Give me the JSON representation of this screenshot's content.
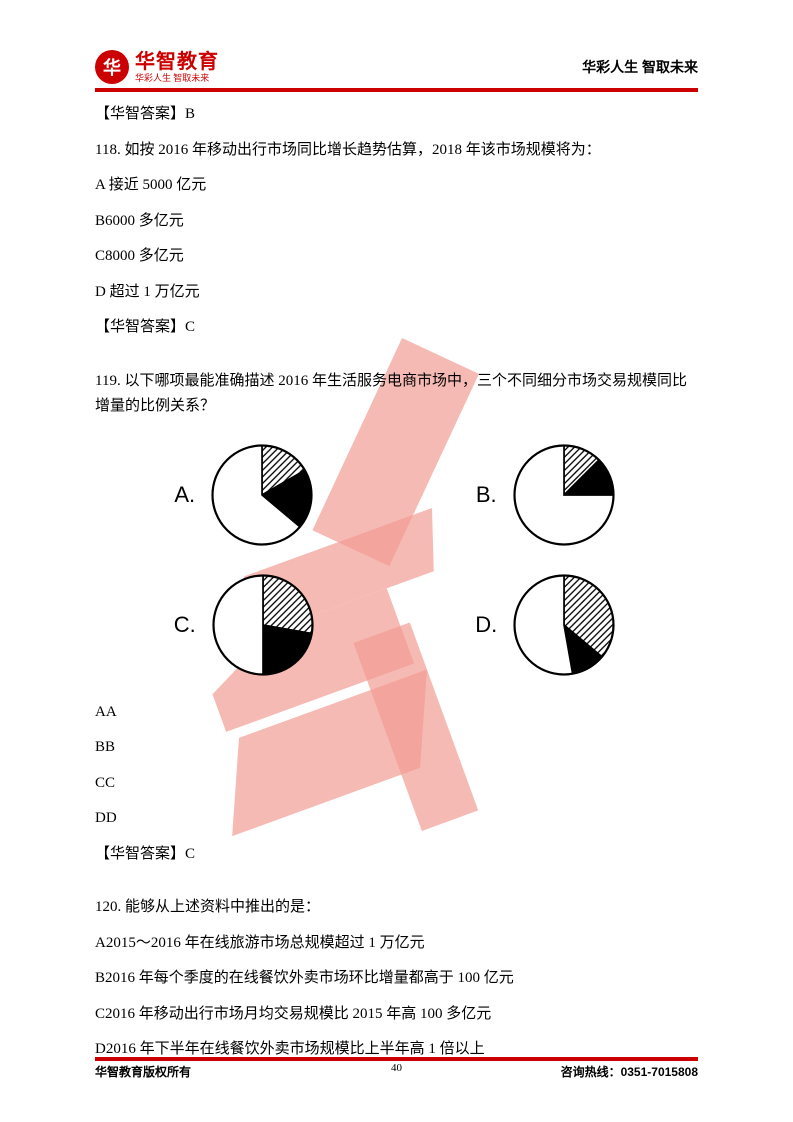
{
  "header": {
    "logo_char": "华",
    "logo_main": "华智教育",
    "logo_sub": "华彩人生 智取未来",
    "right_text": "华彩人生 智取未来"
  },
  "colors": {
    "brand": "#cc0000",
    "text": "#000000",
    "pie_stroke": "#000000",
    "pie_black": "#000000",
    "pie_white": "#ffffff",
    "watermark": "#e74c3c"
  },
  "body": {
    "ans117": "【华智答案】B",
    "q118": "118. 如按 2016 年移动出行市场同比增长趋势估算，2018 年该市场规模将为：",
    "q118a": "A 接近 5000 亿元",
    "q118b": "B6000 多亿元",
    "q118c": "C8000 多亿元",
    "q118d": "D 超过 1 万亿元",
    "ans118": "【华智答案】C",
    "q119": "119. 以下哪项最能准确描述 2016 年生活服务电商市场中，三个不同细分市场交易规模同比增量的比例关系？",
    "pie_labels": {
      "a": "A.",
      "b": "B.",
      "c": "C.",
      "d": "D."
    },
    "pies": {
      "a": {
        "hatched": 60,
        "black": 70,
        "white": 230
      },
      "b": {
        "hatched": 45,
        "black": 45,
        "white": 270
      },
      "c": {
        "hatched": 100,
        "black": 80,
        "white": 180
      },
      "d": {
        "hatched": 130,
        "black": 40,
        "white": 190
      }
    },
    "q119aa": "AA",
    "q119bb": "BB",
    "q119cc": "CC",
    "q119dd": "DD",
    "ans119": "【华智答案】C",
    "q120": "120. 能够从上述资料中推出的是：",
    "q120a": "A2015～2016 年在线旅游市场总规模超过 1 万亿元",
    "q120b": "B2016 年每个季度的在线餐饮外卖市场环比增量都高于 100 亿元",
    "q120c": "C2016 年移动出行市场月均交易规模比 2015 年高 100 多亿元",
    "q120d": "D2016 年下半年在线餐饮外卖市场规模比上半年高 1 倍以上"
  },
  "footer": {
    "left": "华智教育版权所有",
    "right": "咨询热线：0351-7015808",
    "page": "40"
  }
}
